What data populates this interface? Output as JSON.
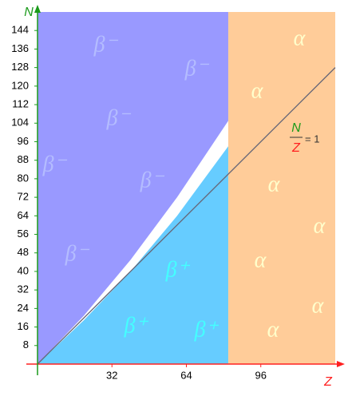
{
  "chart_data": {
    "type": "area",
    "x_label": "Z",
    "y_label": "N",
    "xlim": [
      0,
      128
    ],
    "ylim": [
      0,
      152
    ],
    "xticks": [
      32,
      64,
      96
    ],
    "yticks": [
      8,
      16,
      24,
      32,
      40,
      48,
      56,
      64,
      72,
      80,
      88,
      96,
      104,
      112,
      120,
      128,
      136,
      144
    ],
    "regions": {
      "beta_minus": {
        "label": "β⁻",
        "color": "#9999ff",
        "label_color": "#b4bcff",
        "x": [
          0,
          20,
          40,
          60,
          82
        ],
        "y": [
          0,
          21,
          45,
          72,
          105
        ]
      },
      "beta_plus": {
        "label": "β⁺",
        "color": "#66ccff",
        "label_color": "#44ffff",
        "x": [
          0,
          20,
          40,
          60,
          82
        ],
        "y": [
          0,
          19,
          40,
          64,
          94
        ]
      },
      "alpha": {
        "label": "α",
        "color": "#ffcc99",
        "label_color": "#ffffcc",
        "z_start": 82
      }
    },
    "reference_line": {
      "x": [
        0,
        128
      ],
      "y": [
        0,
        128
      ],
      "color": "#666677",
      "numerator": "N",
      "denominator": "Z",
      "rhs": "= 1"
    },
    "y_axis_color": "#1a9a1a",
    "x_axis_color": "#ff2020"
  }
}
